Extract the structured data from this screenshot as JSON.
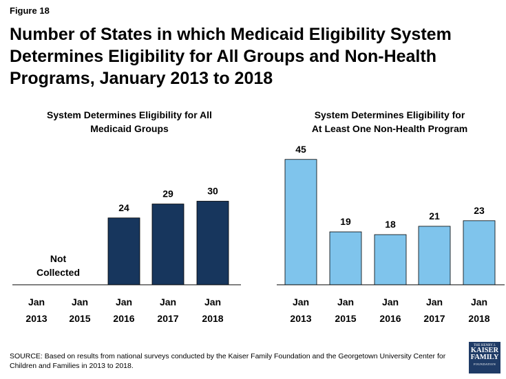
{
  "figure_label": "Figure 18",
  "title": "Number of States in which Medicaid Eligibility System Determines Eligibility for All Groups and Non-Health Programs, January 2013 to 2018",
  "source": "SOURCE: Based on results from national surveys conducted by the Kaiser Family Foundation and the Georgetown University Center for Children and Families in 2013 to 2018.",
  "logo": {
    "top": "THE HENRY J.",
    "line1": "KAISER",
    "line2": "FAMILY",
    "bottom": "FOUNDATION"
  },
  "colors": {
    "dark_bar": "#17365d",
    "light_bar": "#7fc4ec",
    "axis": "#000000"
  },
  "chart_data": [
    {
      "type": "bar",
      "title_lines": [
        "System Determines Eligibility for All",
        "Medicaid Groups"
      ],
      "categories": [
        [
          "Jan",
          "2013"
        ],
        [
          "Jan",
          "2015"
        ],
        [
          "Jan",
          "2016"
        ],
        [
          "Jan",
          "2017"
        ],
        [
          "Jan",
          "2018"
        ]
      ],
      "values": [
        null,
        null,
        24,
        29,
        30
      ],
      "value_labels": [
        "",
        "",
        "24",
        "29",
        "30"
      ],
      "missing_note_lines": [
        "Not",
        "Collected"
      ],
      "ylim": [
        0,
        50
      ],
      "color": "#17365d"
    },
    {
      "type": "bar",
      "title_lines": [
        "System Determines Eligibility for",
        "At Least One Non-Health Program"
      ],
      "categories": [
        [
          "Jan",
          "2013"
        ],
        [
          "Jan",
          "2015"
        ],
        [
          "Jan",
          "2016"
        ],
        [
          "Jan",
          "2017"
        ],
        [
          "Jan",
          "2018"
        ]
      ],
      "values": [
        45,
        19,
        18,
        21,
        23
      ],
      "value_labels": [
        "45",
        "19",
        "18",
        "21",
        "23"
      ],
      "ylim": [
        0,
        50
      ],
      "color": "#7fc4ec"
    }
  ]
}
